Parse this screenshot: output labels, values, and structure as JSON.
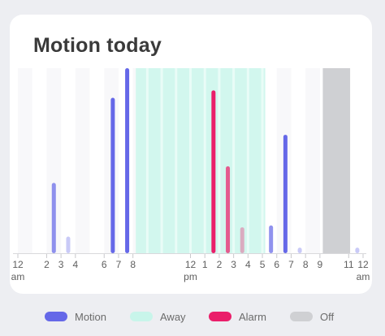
{
  "card": {
    "title": "Motion today"
  },
  "legend": [
    {
      "id": "motion",
      "label": "Motion",
      "color": "#6568e8"
    },
    {
      "id": "away",
      "label": "Away",
      "color": "#c8f5ea"
    },
    {
      "id": "alarm",
      "label": "Alarm",
      "color": "#ea1e6a"
    },
    {
      "id": "off",
      "label": "Off",
      "color": "#cfd0d3"
    }
  ],
  "chart_data": {
    "type": "bar",
    "title": "Motion today",
    "x_unit": "hour of day",
    "xlim": [
      0,
      24
    ],
    "ylim": [
      0,
      100
    ],
    "ticks": [
      {
        "hour": 0,
        "label": "12",
        "sublabel": "am"
      },
      {
        "hour": 2,
        "label": "2"
      },
      {
        "hour": 3,
        "label": "3"
      },
      {
        "hour": 4,
        "label": "4"
      },
      {
        "hour": 6,
        "label": "6"
      },
      {
        "hour": 7,
        "label": "7"
      },
      {
        "hour": 8,
        "label": "8"
      },
      {
        "hour": 12,
        "label": "12",
        "sublabel": "pm"
      },
      {
        "hour": 13,
        "label": "1"
      },
      {
        "hour": 14,
        "label": "2"
      },
      {
        "hour": 15,
        "label": "3"
      },
      {
        "hour": 16,
        "label": "4"
      },
      {
        "hour": 17,
        "label": "5"
      },
      {
        "hour": 18,
        "label": "6"
      },
      {
        "hour": 19,
        "label": "7"
      },
      {
        "hour": 20,
        "label": "8"
      },
      {
        "hour": 21,
        "label": "9"
      },
      {
        "hour": 23,
        "label": "11"
      },
      {
        "hour": 24,
        "label": "12",
        "sublabel": "am"
      }
    ],
    "periods": [
      {
        "state": "away",
        "start": 8.2,
        "end": 17.2
      },
      {
        "state": "off",
        "start": 21.2,
        "end": 23.1
      }
    ],
    "bars": [
      {
        "hour": 2.5,
        "value": 38,
        "state": "motion",
        "intensity": "medium"
      },
      {
        "hour": 3.5,
        "value": 9,
        "state": "motion",
        "intensity": "faint"
      },
      {
        "hour": 6.6,
        "value": 84,
        "state": "motion",
        "intensity": "strong"
      },
      {
        "hour": 7.6,
        "value": 100,
        "state": "motion",
        "intensity": "strong"
      },
      {
        "hour": 13.6,
        "value": 88,
        "state": "alarm",
        "intensity": "strong"
      },
      {
        "hour": 14.6,
        "value": 47,
        "state": "alarm",
        "intensity": "medium"
      },
      {
        "hour": 15.6,
        "value": 14,
        "state": "alarm",
        "intensity": "faint"
      },
      {
        "hour": 17.6,
        "value": 15,
        "state": "motion",
        "intensity": "medium"
      },
      {
        "hour": 18.6,
        "value": 64,
        "state": "motion",
        "intensity": "strong"
      },
      {
        "hour": 19.6,
        "value": 3,
        "state": "motion",
        "intensity": "faint"
      },
      {
        "hour": 23.6,
        "value": 3,
        "state": "motion",
        "intensity": "faint"
      }
    ]
  }
}
